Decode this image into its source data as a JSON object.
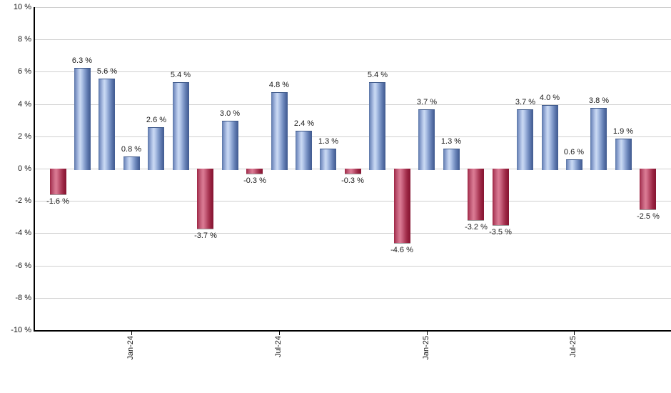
{
  "chart_data": {
    "type": "bar",
    "title": "",
    "grid": true,
    "legend_position": "none",
    "y_axis": {
      "min": -10,
      "max": 10,
      "step": 2,
      "tick_labels": [
        "10 %",
        "8 %",
        "6 %",
        "4 %",
        "2 %",
        "0 %",
        "-2 %",
        "-4 %",
        "-6 %",
        "-8 %",
        "-10 %"
      ]
    },
    "x_axis": {
      "tick_labels": [
        {
          "label": "Jan-24",
          "bar_index": 3
        },
        {
          "label": "Jul-24",
          "bar_index": 9
        },
        {
          "label": "Jan-25",
          "bar_index": 15
        },
        {
          "label": "Jul-25",
          "bar_index": 21
        }
      ]
    },
    "values": [
      -1.6,
      6.3,
      5.6,
      0.8,
      2.6,
      5.4,
      -3.7,
      3.0,
      -0.3,
      4.8,
      2.4,
      1.3,
      -0.3,
      5.4,
      -4.6,
      3.7,
      1.3,
      -3.2,
      -3.5,
      3.7,
      4.0,
      0.6,
      3.8,
      1.9,
      -2.5
    ],
    "bar_labels": [
      "-1.6 %",
      "6.3 %",
      "5.6 %",
      "0.8 %",
      "2.6 %",
      "5.4 %",
      "-3.7 %",
      "3.0 %",
      "-0.3 %",
      "4.8 %",
      "2.4 %",
      "1.3 %",
      "-0.3 %",
      "5.4 %",
      "-4.6 %",
      "3.7 %",
      "1.3 %",
      "-3.2 %",
      "-3.5 %",
      "3.7 %",
      "4.0 %",
      "0.6 %",
      "3.8 %",
      "1.9 %",
      "-2.5 %"
    ],
    "colors": {
      "positive_bar": "#7b96c8",
      "negative_bar": "#b03356",
      "grid_line": "#d0d0d0",
      "axis_line": "#000000",
      "label_text": "#1a1a1a",
      "background": "#ffffff"
    }
  }
}
